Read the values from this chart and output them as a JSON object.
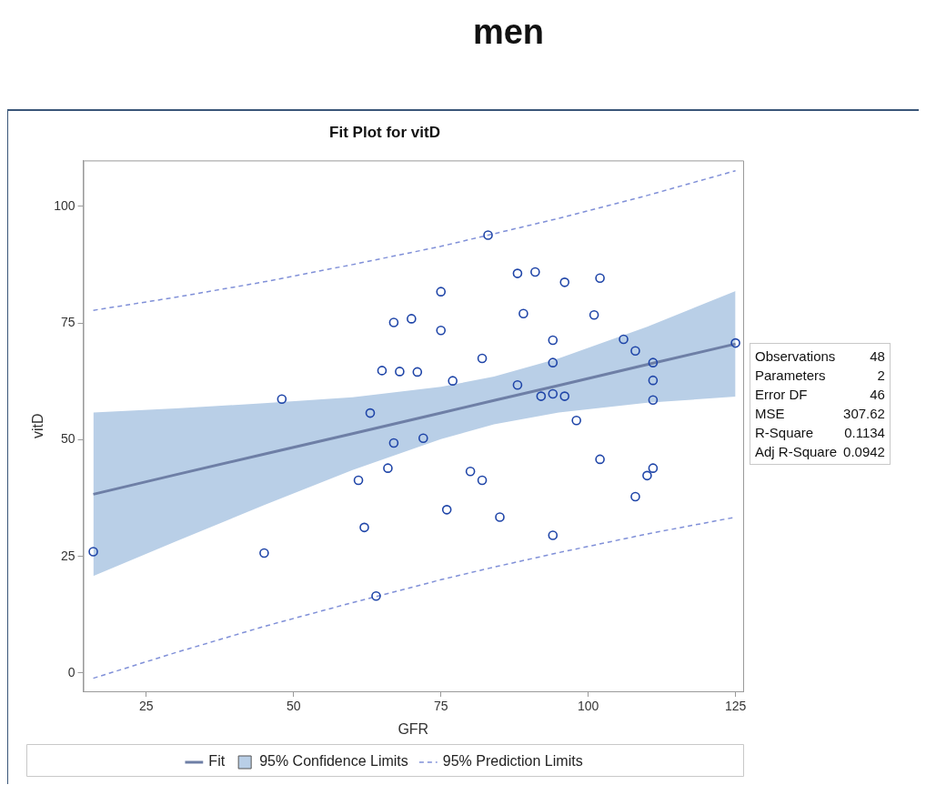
{
  "chart_data": [
    {
      "type": "scatter",
      "title": "men",
      "subtitle": "Fit Plot for vitD",
      "xlabel": "GFR",
      "ylabel": "vitD",
      "xlim": [
        14.3,
        126.3
      ],
      "xticks": [
        25,
        50,
        75,
        100,
        125
      ],
      "ylim": [
        -3.9,
        109.8
      ],
      "yticks": [
        0,
        25,
        50,
        75,
        100
      ],
      "legend": "bottom",
      "series": [
        {
          "type": "scatter",
          "color": "#1f45a8",
          "marker": "circle",
          "x": [
            16,
            45,
            48,
            61,
            62,
            63,
            64,
            66,
            67,
            65,
            67,
            68,
            70,
            71,
            75,
            75,
            77,
            82,
            83,
            88,
            91,
            96,
            102,
            89,
            101,
            94,
            106,
            108,
            111,
            94,
            88,
            92,
            94,
            96,
            111,
            111,
            98,
            125,
            72,
            80,
            82,
            102,
            111,
            110,
            108,
            76,
            85,
            94
          ],
          "values": [
            26.0,
            25.7,
            58.7,
            41.3,
            31.2,
            55.7,
            16.5,
            43.9,
            49.3,
            64.8,
            75.1,
            64.6,
            75.9,
            64.5,
            81.7,
            73.4,
            62.6,
            67.4,
            93.8,
            85.6,
            85.9,
            83.7,
            84.6,
            77.0,
            76.7,
            71.3,
            71.5,
            69.0,
            66.5,
            66.5,
            61.7,
            59.3,
            59.8,
            59.3,
            62.7,
            58.5,
            54.1,
            70.7,
            50.3,
            43.2,
            41.3,
            45.8,
            43.9,
            42.3,
            37.8,
            35.0,
            33.4,
            29.5
          ]
        },
        {
          "name": "Fit",
          "type": "line",
          "color": "#6e7fa6",
          "line_style": "solid",
          "x": [
            16,
            30,
            45,
            60,
            75,
            84,
            95,
            110,
            125
          ],
          "values": [
            38.3,
            42.5,
            46.9,
            51.3,
            55.7,
            58.4,
            61.6,
            66.1,
            70.5
          ],
          "lower": [
            20.8,
            28.2,
            36.0,
            43.5,
            50.1,
            53.3,
            55.8,
            57.9,
            59.2
          ],
          "upper": [
            55.8,
            56.7,
            57.8,
            59.1,
            61.3,
            63.5,
            67.4,
            74.2,
            81.8
          ]
        },
        {
          "name": "95% Confidence Limits",
          "type": "area",
          "color": "#b9cfe7"
        },
        {
          "name": "95% Prediction Limits",
          "type": "line",
          "color": "#8090d8",
          "line_style": "dashed",
          "x": [
            16,
            30,
            45,
            60,
            75,
            84,
            95,
            110,
            125
          ],
          "values": [
            77.7,
            80.5,
            83.8,
            87.5,
            91.4,
            94.1,
            97.4,
            102.3,
            107.6
          ]
        },
        {
          "type": "line",
          "color": "#8090d8",
          "line_style": "dashed",
          "x": [
            16,
            30,
            45,
            60,
            75,
            84,
            95,
            110,
            125
          ],
          "values": [
            -1.1,
            4.4,
            10.0,
            15.1,
            20.0,
            22.7,
            25.8,
            29.8,
            33.4
          ]
        }
      ]
    },
    {
      "type": "other",
      "annotations": [
        "Observations",
        "48",
        "Parameters",
        "2",
        "Error DF",
        "46",
        "MSE",
        "307.62",
        "R-Square",
        "0.1134",
        "Adj R-Square",
        "0.0942"
      ]
    }
  ]
}
